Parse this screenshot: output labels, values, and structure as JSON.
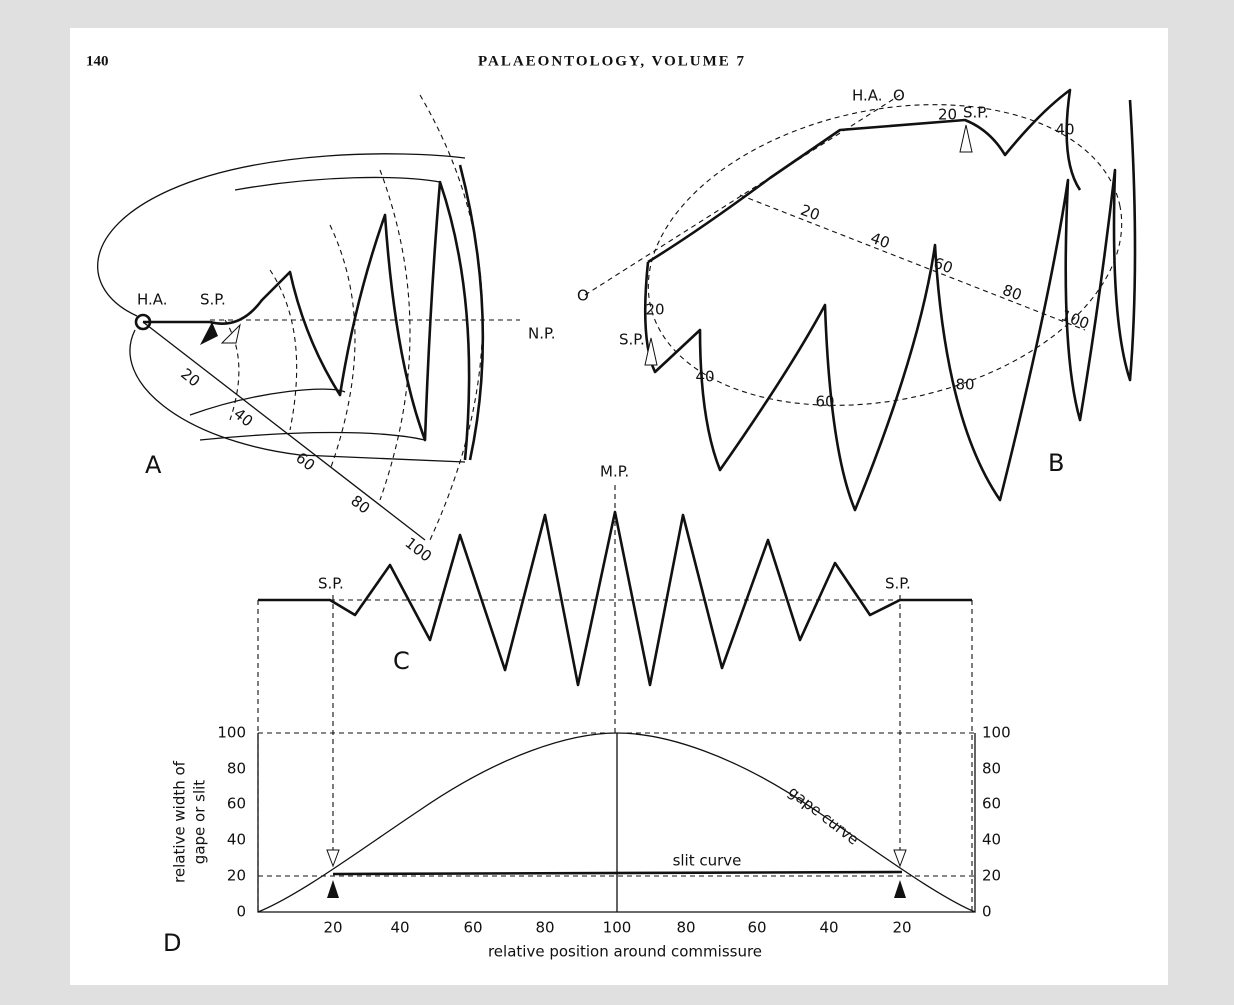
{
  "header": {
    "page_number": "140",
    "title": "PALAEONTOLOGY, VOLUME 7"
  },
  "figure": {
    "panel_a": {
      "label": "A",
      "hinge_axis": "H.A.",
      "slit_point": "S.P.",
      "normal_plane": "N.P.",
      "scale": [
        20,
        40,
        60,
        80,
        100
      ]
    },
    "panel_b": {
      "label": "B",
      "hinge_axis": "H.A.",
      "origins": [
        "O",
        "O"
      ],
      "slit_points": [
        "S.P.",
        "S.P."
      ],
      "top_mark": 20,
      "axis_scale": [
        20,
        40,
        60,
        80,
        100
      ],
      "arc_labels": [
        20,
        40,
        60,
        80,
        40
      ]
    },
    "panel_c": {
      "label": "C",
      "median_plane": "M.P.",
      "slit_points": [
        "S.P.",
        "S.P."
      ]
    },
    "panel_d": {
      "label": "D",
      "y_label": [
        "relative width of",
        "gape or slit"
      ],
      "x_label": "relative position around commissure",
      "y_ticks_left": [
        0,
        20,
        40,
        60,
        80,
        100
      ],
      "y_ticks_right": [
        0,
        20,
        40,
        60,
        80,
        100
      ],
      "x_ticks": [
        20,
        40,
        60,
        80,
        100,
        80,
        60,
        40,
        20
      ],
      "gape_curve": "gape curve",
      "slit_curve": "slit curve"
    }
  }
}
